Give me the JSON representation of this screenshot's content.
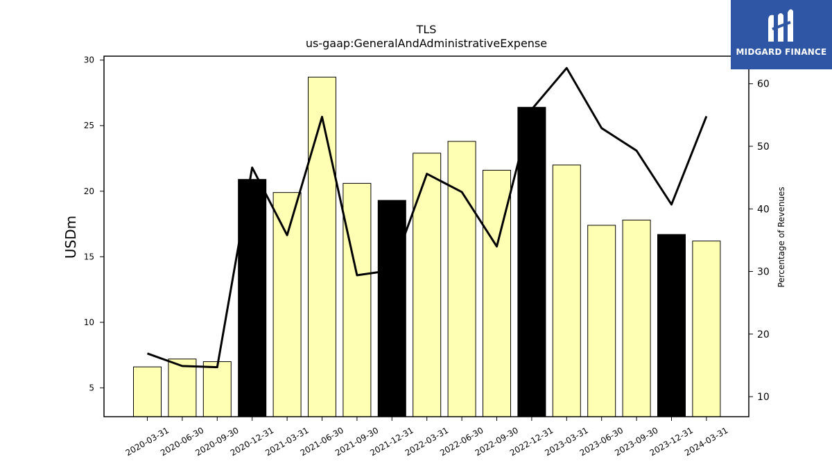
{
  "chart_data": {
    "type": "bar",
    "title": "TLS",
    "subtitle": "us-gaap:GeneralAndAdministrativeExpense",
    "ylabel": "USDm",
    "y2label": "Percentage of Revenues",
    "categories": [
      "2020-03-31",
      "2020-06-30",
      "2020-09-30",
      "2020-12-31",
      "2021-03-31",
      "2021-06-30",
      "2021-09-30",
      "2021-12-31",
      "2022-03-31",
      "2022-06-30",
      "2022-09-30",
      "2022-12-31",
      "2023-03-31",
      "2023-06-30",
      "2023-09-30",
      "2023-12-31",
      "2024-03-31"
    ],
    "series": [
      {
        "type": "bar",
        "axis": "left",
        "values": [
          6.6,
          7.2,
          7.0,
          20.9,
          19.9,
          28.7,
          20.6,
          19.3,
          22.9,
          23.8,
          21.6,
          26.4,
          22.0,
          17.4,
          17.8,
          16.7,
          16.2
        ],
        "highlight_color": "#000000",
        "color": "#ffffb3",
        "highlighted": [
          "2020-12-31",
          "2021-12-31",
          "2022-12-31",
          "2023-12-31"
        ]
      },
      {
        "type": "line",
        "axis": "right",
        "values": [
          16.9,
          14.9,
          14.7,
          46.6,
          35.8,
          54.7,
          29.4,
          30.2,
          45.6,
          42.7,
          34.0,
          55.9,
          62.5,
          52.9,
          49.3,
          40.7,
          54.8
        ],
        "color": "#000000"
      }
    ],
    "ylim": [
      2.8,
      30.3
    ],
    "y2lim": [
      6.8,
      64.4
    ],
    "yticks": [
      5,
      10,
      15,
      20,
      25,
      30
    ],
    "y2ticks": [
      10,
      20,
      30,
      40,
      50,
      60
    ]
  },
  "logo": {
    "name": "MIDGARD FINANCE",
    "color": "#2e56a4"
  }
}
